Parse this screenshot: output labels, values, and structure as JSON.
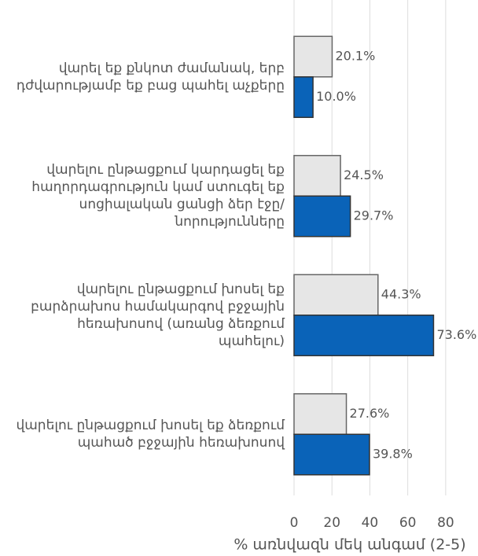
{
  "chart_data": {
    "type": "bar",
    "orientation": "horizontal",
    "categories": [
      "վարել եք քնկոտ ժամանակ, երբ դժվարությամբ եք բաց պահել աչքերը",
      "վարելու ընթացքում կարդացել եք հաղորդագրություն կամ ստուգել եք սոցիալական ցանցի ձեր էջը/նորությունները",
      "վարելու ընթացքում խոսել եք բարձրախոս համակարգով բջջային հեռախոսով (առանց ձեռքում պահելու)",
      "վարելու ընթացքում խոսել եք ձեռքում պահած բջջային հեռախոսով"
    ],
    "series": [
      {
        "color": "#e6e6e6",
        "values": [
          20.1,
          24.5,
          44.3,
          27.6
        ],
        "value_labels": [
          "20.1%",
          "24.5%",
          "44.3%",
          "27.6%"
        ]
      },
      {
        "color": "#0a63b8",
        "values": [
          10.0,
          29.7,
          73.6,
          39.8
        ],
        "value_labels": [
          "10.0%",
          "29.7%",
          "73.6%",
          "39.8%"
        ]
      }
    ],
    "xlabel": "% առնվազն մեկ անգամ (2-5)",
    "xlim": [
      0,
      90
    ],
    "xticks": [
      0,
      20,
      40,
      60,
      80
    ],
    "grid": true
  }
}
